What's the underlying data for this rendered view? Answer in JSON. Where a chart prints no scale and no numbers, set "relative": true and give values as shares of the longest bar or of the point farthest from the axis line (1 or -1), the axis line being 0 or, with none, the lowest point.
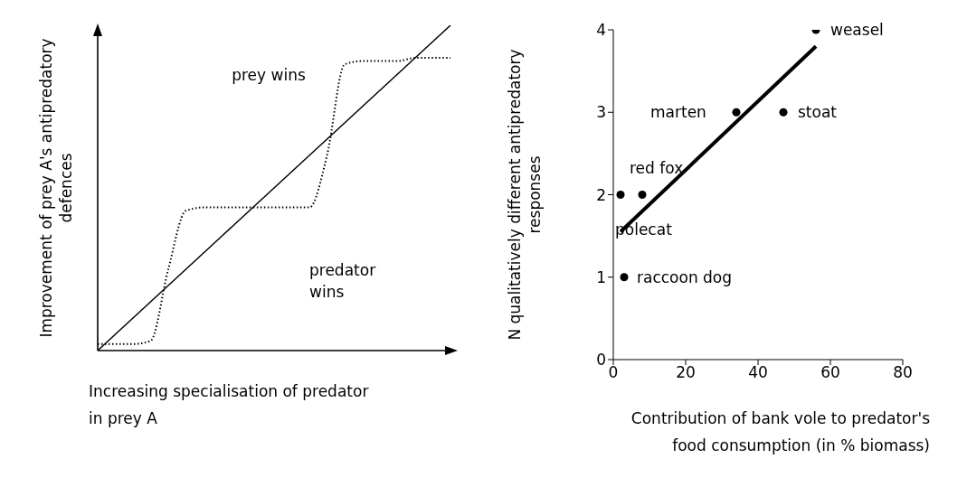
{
  "chart_data": [
    {
      "type": "line",
      "relative": true,
      "xlabel": "Increasing specialisation of predator in prey A",
      "ylabel": "Improvement of prey A's antipredatory defences",
      "categories": [
        null,
        null,
        null,
        null,
        null,
        null,
        null,
        null,
        null,
        null,
        null,
        null,
        null,
        null,
        null,
        null,
        null,
        null,
        null,
        null,
        null
      ],
      "series": [
        {
          "color": "#000000",
          "line_style": "solid",
          "values": [
            0,
            0.05,
            0.1,
            0.15,
            0.2,
            0.25,
            0.3,
            0.35,
            0.4,
            0.45,
            0.5,
            0.55,
            0.6,
            0.65,
            0.7,
            0.75,
            0.8,
            0.85,
            0.9,
            0.95,
            1
          ]
        },
        {
          "color": "#000000",
          "line_style": "dotted",
          "values": [
            0.02,
            0.02,
            0.02,
            0.03,
            0.25,
            0.43,
            0.44,
            0.44,
            0.44,
            0.44,
            0.44,
            0.44,
            0.44,
            0.6,
            0.88,
            0.89,
            0.89,
            0.89,
            0.9,
            0.9,
            0.9
          ]
        }
      ],
      "annotations": [
        "prey wins",
        "predator wins"
      ],
      "grid": false,
      "legend": false,
      "marker": "none"
    },
    {
      "type": "scatter",
      "xlabel": "Contribution of bank vole to predator's food consumption (in % biomass)",
      "ylabel": "N qualitatively different antipredatory responses",
      "xlim": [
        0,
        80
      ],
      "xticks": [
        0,
        20,
        40,
        60,
        80
      ],
      "ylim": [
        0,
        4
      ],
      "yticks": [
        0,
        1,
        2,
        3,
        4
      ],
      "grid": false,
      "legend": false,
      "series": [
        {
          "type": "scatter",
          "color": "#000000",
          "marker": "circle",
          "x": [
            2,
            8,
            3,
            34,
            47,
            56
          ],
          "values": [
            2,
            2,
            1,
            3,
            3,
            4
          ]
        },
        {
          "type": "line",
          "color": "#000000",
          "marker": "none",
          "x": [
            2,
            56
          ],
          "values": [
            1.55,
            3.8
          ]
        }
      ],
      "annotations": [
        {
          "text": "polecat",
          "x": 2,
          "y": 2
        },
        {
          "text": "red fox",
          "x": 8,
          "y": 2
        },
        {
          "text": "raccoon dog",
          "x": 3,
          "y": 1
        },
        {
          "text": "marten",
          "x": 34,
          "y": 3
        },
        {
          "text": "stoat",
          "x": 47,
          "y": 3
        },
        {
          "text": "weasel",
          "x": 56,
          "y": 4
        }
      ]
    }
  ]
}
